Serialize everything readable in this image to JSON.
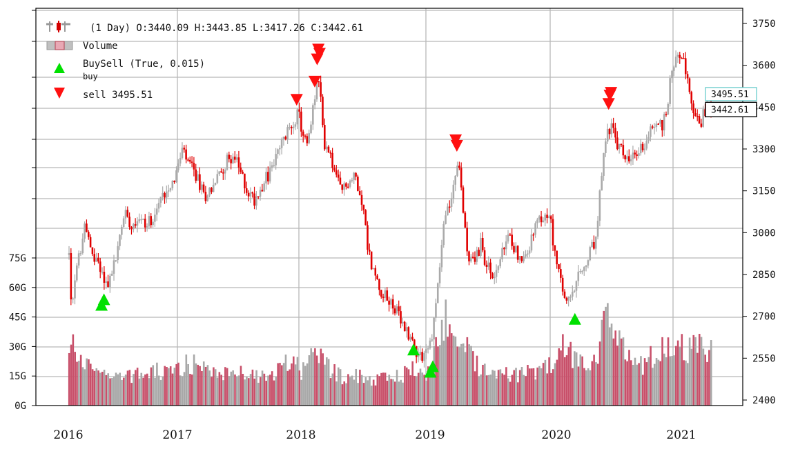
{
  "chart_data": {
    "type": "candlestick",
    "legend": {
      "ohlc_label": "(1 Day) O:3440.09 H:3443.85 L:3417.26 C:3442.61",
      "volume_label": "Volume",
      "buysell_label": "BuySell (True, 0.015)",
      "buy_label": "buy",
      "sell_label": "sell 3495.51"
    },
    "price_axis": {
      "ticks": [
        2400,
        2550,
        2700,
        2850,
        3000,
        3150,
        3300,
        3450,
        3600,
        3750
      ],
      "labels": [
        "2400",
        "2550",
        "2700",
        "2850",
        "3000",
        "3150",
        "3300",
        "3450",
        "3600",
        "3750"
      ],
      "range": [
        2370,
        3800
      ]
    },
    "volume_axis": {
      "ticks": [
        0,
        15,
        30,
        45,
        60,
        75
      ],
      "labels": [
        "0G",
        "15G",
        "30G",
        "45G",
        "60G",
        "75G"
      ],
      "unit": "G"
    },
    "x_axis": {
      "labels": [
        "2016",
        "2017",
        "2018",
        "2019",
        "2020",
        "2021"
      ],
      "start": 2016.0,
      "end": 2021.33
    },
    "current_close": {
      "value": 3442.61,
      "label": "3442.61"
    },
    "sell_line": {
      "value": 3495.51,
      "label": "3495.51"
    },
    "price_path": [
      [
        2016.0,
        2920
      ],
      [
        2016.02,
        2700
      ],
      [
        2016.06,
        2860
      ],
      [
        2016.1,
        2950
      ],
      [
        2016.14,
        3040
      ],
      [
        2016.18,
        2920
      ],
      [
        2016.24,
        2900
      ],
      [
        2016.3,
        2820
      ],
      [
        2016.34,
        2830
      ],
      [
        2016.4,
        2930
      ],
      [
        2016.46,
        3080
      ],
      [
        2016.52,
        3030
      ],
      [
        2016.58,
        3060
      ],
      [
        2016.64,
        3020
      ],
      [
        2016.72,
        3080
      ],
      [
        2016.8,
        3150
      ],
      [
        2016.88,
        3200
      ],
      [
        2016.94,
        3290
      ],
      [
        2017.0,
        3240
      ],
      [
        2017.06,
        3200
      ],
      [
        2017.12,
        3130
      ],
      [
        2017.18,
        3160
      ],
      [
        2017.24,
        3200
      ],
      [
        2017.3,
        3250
      ],
      [
        2017.36,
        3280
      ],
      [
        2017.42,
        3220
      ],
      [
        2017.48,
        3150
      ],
      [
        2017.54,
        3120
      ],
      [
        2017.6,
        3170
      ],
      [
        2017.66,
        3210
      ],
      [
        2017.72,
        3270
      ],
      [
        2017.78,
        3330
      ],
      [
        2017.84,
        3380
      ],
      [
        2017.9,
        3430
      ],
      [
        2017.94,
        3360
      ],
      [
        2017.98,
        3310
      ],
      [
        2018.02,
        3420
      ],
      [
        2018.06,
        3550
      ],
      [
        2018.09,
        3480
      ],
      [
        2018.12,
        3320
      ],
      [
        2018.16,
        3290
      ],
      [
        2018.2,
        3220
      ],
      [
        2018.26,
        3150
      ],
      [
        2018.32,
        3180
      ],
      [
        2018.38,
        3200
      ],
      [
        2018.44,
        3100
      ],
      [
        2018.48,
        2950
      ],
      [
        2018.52,
        2870
      ],
      [
        2018.58,
        2800
      ],
      [
        2018.64,
        2760
      ],
      [
        2018.7,
        2740
      ],
      [
        2018.76,
        2670
      ],
      [
        2018.82,
        2640
      ],
      [
        2018.88,
        2580
      ],
      [
        2018.94,
        2560
      ],
      [
        2019.0,
        2600
      ],
      [
        2019.04,
        2720
      ],
      [
        2019.08,
        2900
      ],
      [
        2019.12,
        3060
      ],
      [
        2019.16,
        3090
      ],
      [
        2019.2,
        3200
      ],
      [
        2019.24,
        3230
      ],
      [
        2019.28,
        3050
      ],
      [
        2019.32,
        2900
      ],
      [
        2019.38,
        2910
      ],
      [
        2019.42,
        2960
      ],
      [
        2019.46,
        2890
      ],
      [
        2019.52,
        2840
      ],
      [
        2019.58,
        2900
      ],
      [
        2019.64,
        2980
      ],
      [
        2019.7,
        2950
      ],
      [
        2019.76,
        2890
      ],
      [
        2019.82,
        2950
      ],
      [
        2019.88,
        3020
      ],
      [
        2019.94,
        3060
      ],
      [
        2020.0,
        3040
      ],
      [
        2020.04,
        2900
      ],
      [
        2020.08,
        2820
      ],
      [
        2020.12,
        2760
      ],
      [
        2020.16,
        2750
      ],
      [
        2020.2,
        2800
      ],
      [
        2020.24,
        2850
      ],
      [
        2020.28,
        2870
      ],
      [
        2020.32,
        2920
      ],
      [
        2020.38,
        2980
      ],
      [
        2020.42,
        3200
      ],
      [
        2020.46,
        3350
      ],
      [
        2020.5,
        3390
      ],
      [
        2020.54,
        3320
      ],
      [
        2020.58,
        3300
      ],
      [
        2020.62,
        3270
      ],
      [
        2020.66,
        3250
      ],
      [
        2020.7,
        3280
      ],
      [
        2020.74,
        3300
      ],
      [
        2020.78,
        3320
      ],
      [
        2020.84,
        3380
      ],
      [
        2020.88,
        3400
      ],
      [
        2020.92,
        3380
      ],
      [
        2020.96,
        3430
      ],
      [
        2021.0,
        3580
      ],
      [
        2021.04,
        3620
      ],
      [
        2021.08,
        3660
      ],
      [
        2021.12,
        3560
      ],
      [
        2021.16,
        3480
      ],
      [
        2021.2,
        3410
      ],
      [
        2021.24,
        3390
      ],
      [
        2021.28,
        3440
      ],
      [
        2021.33,
        3442
      ]
    ],
    "volume_path": [
      [
        2016.0,
        24
      ],
      [
        2016.04,
        33
      ],
      [
        2016.08,
        24
      ],
      [
        2016.12,
        18
      ],
      [
        2016.18,
        22
      ],
      [
        2016.24,
        17
      ],
      [
        2016.3,
        15
      ],
      [
        2016.36,
        16
      ],
      [
        2016.42,
        15
      ],
      [
        2016.48,
        15
      ],
      [
        2016.54,
        14
      ],
      [
        2016.6,
        16
      ],
      [
        2016.66,
        15
      ],
      [
        2016.72,
        17
      ],
      [
        2016.78,
        16
      ],
      [
        2016.84,
        17
      ],
      [
        2016.9,
        18
      ],
      [
        2016.96,
        20
      ],
      [
        2017.02,
        21
      ],
      [
        2017.08,
        18
      ],
      [
        2017.14,
        17
      ],
      [
        2017.2,
        16
      ],
      [
        2017.26,
        17
      ],
      [
        2017.32,
        16
      ],
      [
        2017.38,
        15
      ],
      [
        2017.44,
        16
      ],
      [
        2017.5,
        16
      ],
      [
        2017.56,
        15
      ],
      [
        2017.62,
        15
      ],
      [
        2017.68,
        16
      ],
      [
        2017.74,
        18
      ],
      [
        2017.8,
        20
      ],
      [
        2017.86,
        22
      ],
      [
        2017.92,
        17
      ],
      [
        2017.98,
        19
      ],
      [
        2018.02,
        24
      ],
      [
        2018.06,
        26
      ],
      [
        2018.1,
        23
      ],
      [
        2018.16,
        18
      ],
      [
        2018.22,
        16
      ],
      [
        2018.28,
        14
      ],
      [
        2018.34,
        14
      ],
      [
        2018.4,
        15
      ],
      [
        2018.46,
        14
      ],
      [
        2018.52,
        13
      ],
      [
        2018.58,
        13
      ],
      [
        2018.64,
        14
      ],
      [
        2018.7,
        14
      ],
      [
        2018.76,
        15
      ],
      [
        2018.82,
        17
      ],
      [
        2018.86,
        20
      ],
      [
        2018.9,
        15
      ],
      [
        2018.94,
        14
      ],
      [
        2019.0,
        17
      ],
      [
        2019.04,
        26
      ],
      [
        2019.08,
        36
      ],
      [
        2019.12,
        44
      ],
      [
        2019.16,
        38
      ],
      [
        2019.2,
        33
      ],
      [
        2019.24,
        31
      ],
      [
        2019.3,
        28
      ],
      [
        2019.36,
        22
      ],
      [
        2019.42,
        19
      ],
      [
        2019.48,
        17
      ],
      [
        2019.54,
        18
      ],
      [
        2019.6,
        16
      ],
      [
        2019.66,
        15
      ],
      [
        2019.72,
        15
      ],
      [
        2019.78,
        16
      ],
      [
        2019.84,
        17
      ],
      [
        2019.9,
        18
      ],
      [
        2019.96,
        19
      ],
      [
        2020.02,
        22
      ],
      [
        2020.06,
        30
      ],
      [
        2020.1,
        35
      ],
      [
        2020.14,
        28
      ],
      [
        2020.18,
        23
      ],
      [
        2020.22,
        21
      ],
      [
        2020.28,
        19
      ],
      [
        2020.34,
        20
      ],
      [
        2020.38,
        23
      ],
      [
        2020.42,
        38
      ],
      [
        2020.46,
        46
      ],
      [
        2020.5,
        36
      ],
      [
        2020.56,
        30
      ],
      [
        2020.62,
        26
      ],
      [
        2020.68,
        22
      ],
      [
        2020.74,
        20
      ],
      [
        2020.8,
        22
      ],
      [
        2020.86,
        25
      ],
      [
        2020.92,
        28
      ],
      [
        2020.98,
        30
      ],
      [
        2021.04,
        32
      ],
      [
        2021.08,
        29
      ],
      [
        2021.12,
        27
      ],
      [
        2021.18,
        33
      ],
      [
        2021.24,
        28
      ],
      [
        2021.3,
        25
      ],
      [
        2021.33,
        26
      ]
    ],
    "sell_markers": [
      {
        "x": 2017.89,
        "y": 3475
      },
      {
        "x": 2018.04,
        "y": 3540
      },
      {
        "x": 2018.06,
        "y": 3620
      },
      {
        "x": 2018.07,
        "y": 3655
      },
      {
        "x": 2018.08,
        "y": 3640
      },
      {
        "x": 2019.21,
        "y": 3330
      },
      {
        "x": 2019.22,
        "y": 3310
      },
      {
        "x": 2020.48,
        "y": 3460
      },
      {
        "x": 2020.49,
        "y": 3490
      },
      {
        "x": 2020.5,
        "y": 3500
      }
    ],
    "buy_markers": [
      {
        "x": 2016.27,
        "y": 2740
      },
      {
        "x": 2016.29,
        "y": 2760
      },
      {
        "x": 2018.86,
        "y": 2580
      },
      {
        "x": 2019.0,
        "y": 2500
      },
      {
        "x": 2019.02,
        "y": 2520
      },
      {
        "x": 2020.2,
        "y": 2690
      }
    ],
    "grid": true
  }
}
